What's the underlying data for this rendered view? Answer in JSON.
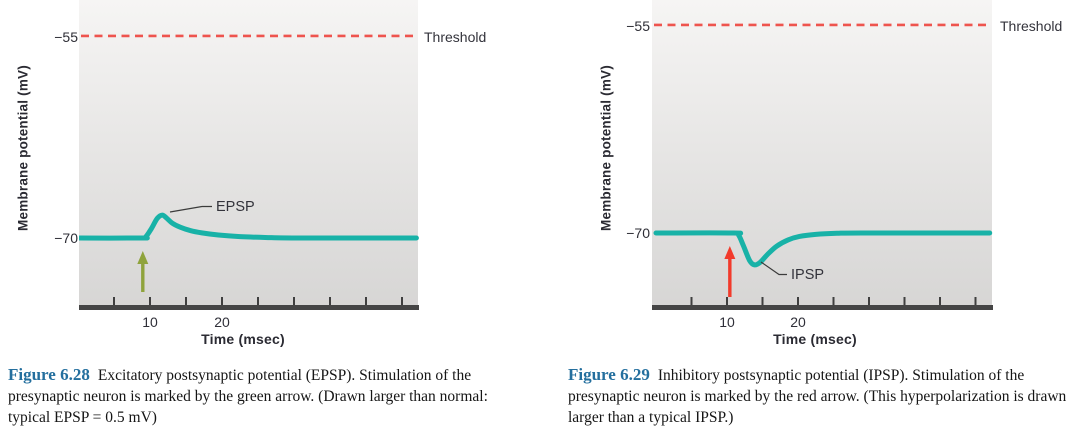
{
  "figures": [
    {
      "y_axis_label": "Membrane potential (mV)",
      "x_axis_label": "Time (msec)",
      "threshold_tick": "−55",
      "resting_tick": "−70",
      "x_tick_labels": [
        "10",
        "20"
      ],
      "threshold_label": "Threshold",
      "curve_label": "EPSP",
      "caption": {
        "label": "Figure 6.28",
        "text": "Excitatory postsynaptic potential (EPSP). Stimulation of the presynaptic neuron is marked by the green arrow. (Drawn larger than normal: typical EPSP = 0.5 mV)"
      }
    },
    {
      "y_axis_label": "Membrane potential (mV)",
      "x_axis_label": "Time (msec)",
      "threshold_tick": "−55",
      "resting_tick": "−70",
      "x_tick_labels": [
        "10",
        "20"
      ],
      "threshold_label": "Threshold",
      "curve_label": "IPSP",
      "caption": {
        "label": "Figure 6.29",
        "text": "Inhibitory postsynaptic potential (IPSP). Stimulation of the presynaptic neuron is marked by the red arrow. (This hyperpolarization is drawn larger than a typical IPSP.)"
      }
    }
  ],
  "chart_data": [
    {
      "type": "line",
      "title": "Excitatory postsynaptic potential (EPSP)",
      "xlabel": "Time (msec)",
      "ylabel": "Membrane potential (mV)",
      "xlim": [
        0,
        47
      ],
      "ylim": [
        -75,
        -52
      ],
      "grid": false,
      "x_ticks": [
        5,
        10,
        15,
        20,
        25,
        30,
        35,
        40,
        45
      ],
      "x_tick_labels_shown": [
        "10",
        "20"
      ],
      "threshold": {
        "value": -55,
        "label": "Threshold"
      },
      "resting_potential_mV": -70,
      "peak_mV": -68.3,
      "stimulus": {
        "time_msec": 9,
        "marker": "green arrow"
      },
      "series": [
        {
          "name": "EPSP",
          "points": [
            [
              0,
              -70
            ],
            [
              8.8,
              -70
            ],
            [
              9.4,
              -69.92
            ],
            [
              10.2,
              -69.3
            ],
            [
              11,
              -68.55
            ],
            [
              11.7,
              -68.3
            ],
            [
              12.3,
              -68.52
            ],
            [
              13.1,
              -68.9
            ],
            [
              14.2,
              -69.2
            ],
            [
              15.6,
              -69.45
            ],
            [
              17.2,
              -69.62
            ],
            [
              19.5,
              -69.78
            ],
            [
              22.5,
              -69.9
            ],
            [
              26,
              -69.96
            ],
            [
              31,
              -70
            ],
            [
              47,
              -70
            ]
          ]
        }
      ]
    },
    {
      "type": "line",
      "title": "Inhibitory postsynaptic potential (IPSP)",
      "xlabel": "Time (msec)",
      "ylabel": "Membrane potential (mV)",
      "xlim": [
        0,
        47
      ],
      "ylim": [
        -75,
        -52
      ],
      "grid": false,
      "x_ticks": [
        5,
        10,
        15,
        20,
        25,
        30,
        35,
        40,
        45
      ],
      "x_tick_labels_shown": [
        "10",
        "20"
      ],
      "threshold": {
        "value": -55,
        "label": "Threshold"
      },
      "resting_potential_mV": -70,
      "trough_mV": -72.3,
      "stimulus": {
        "time_msec": 10.4,
        "marker": "red arrow"
      },
      "series": [
        {
          "name": "IPSP",
          "points": [
            [
              0,
              -70
            ],
            [
              10.9,
              -70
            ],
            [
              11.6,
              -70.12
            ],
            [
              12.3,
              -70.9
            ],
            [
              13.2,
              -72
            ],
            [
              13.9,
              -72.3
            ],
            [
              14.7,
              -72.1
            ],
            [
              15.7,
              -71.55
            ],
            [
              17,
              -70.95
            ],
            [
              18.6,
              -70.5
            ],
            [
              20.2,
              -70.25
            ],
            [
              22.5,
              -70.1
            ],
            [
              25.5,
              -70.02
            ],
            [
              29,
              -70
            ],
            [
              47,
              -70
            ]
          ]
        }
      ]
    }
  ],
  "colors": {
    "curve_teal": "#18b2a7",
    "threshold_red": "#ee544e",
    "green_arrow": "#8fa33c",
    "red_arrow": "#f23a2b",
    "axis_bar": "#454545",
    "tick": "#3f3f3f",
    "leader_line": "#3b3b3b",
    "figure_label_blue": "#246f9e",
    "plot_bg_top": "#f6f5f4",
    "plot_bg_bottom": "#d7d6d5"
  }
}
